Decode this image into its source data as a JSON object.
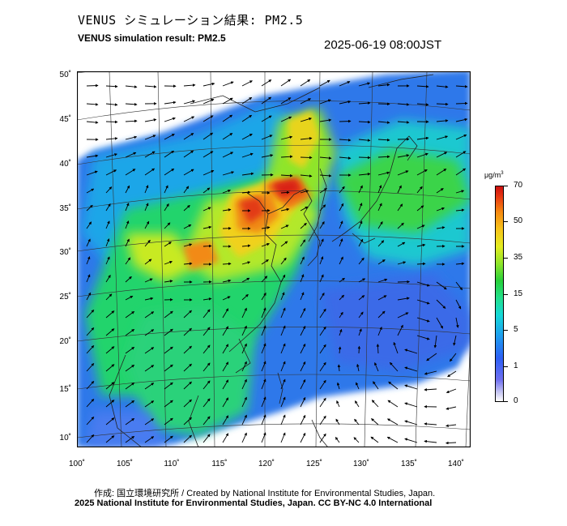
{
  "header": {
    "title_jp": "VENUS シミュレーション結果: PM2.5",
    "title_en": "VENUS simulation result: PM2.5",
    "timestamp": "2025-06-19 08:00JST"
  },
  "map": {
    "lat_labels": [
      "50˚",
      "45˚",
      "40˚",
      "35˚",
      "30˚",
      "25˚",
      "20˚",
      "15˚",
      "10˚"
    ],
    "lon_labels": [
      "100˚",
      "105˚",
      "110˚",
      "115˚",
      "120˚",
      "125˚",
      "130˚",
      "135˚",
      "140˚"
    ],
    "lon_range": [
      100,
      140
    ],
    "lat_range": [
      10,
      50
    ],
    "layers": [
      "PM2.5 concentration",
      "wind vectors",
      "coastlines",
      "graticule"
    ],
    "colors": {
      "frame": "#000000",
      "land_lines": "#222222",
      "graticule": "#333333"
    }
  },
  "colorbar": {
    "unit": "μg/m",
    "unit_sup": "3",
    "ticks": [
      "70",
      "50",
      "35",
      "15",
      "5",
      "1",
      "0"
    ],
    "colors": [
      "#ffffff",
      "#6f6ff0",
      "#1e9bf0",
      "#15d8d8",
      "#27d03a",
      "#e4ec20",
      "#f68a10",
      "#cc0f0f"
    ]
  },
  "footer": {
    "credit_jp_en": "作成: 国立環境研究所 / Created by National Institute for Environmental Studies, Japan.",
    "copyright": "2025 National Institute for Environmental Studies, Japan. CC BY-NC 4.0 International"
  }
}
